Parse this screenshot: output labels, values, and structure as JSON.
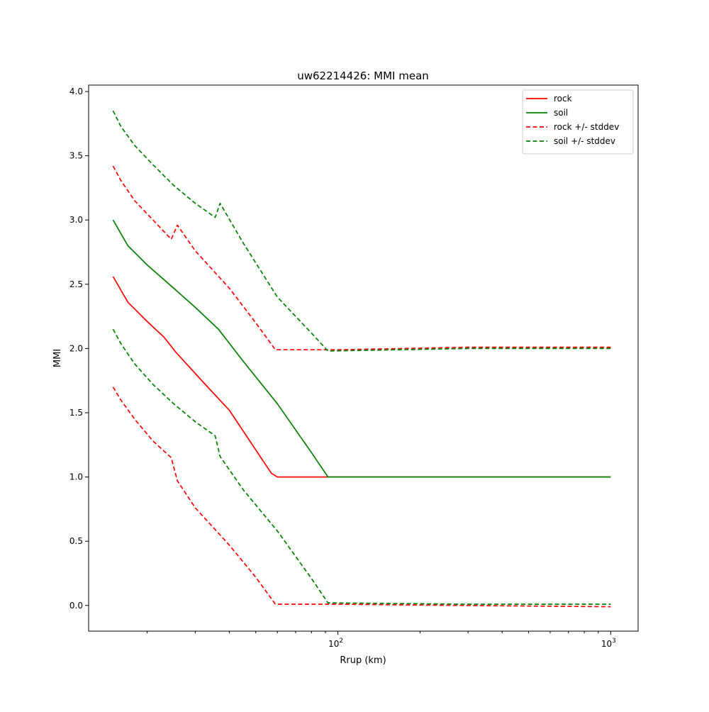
{
  "chart_data": {
    "type": "line",
    "title": "uw62214426: MMI mean",
    "xlabel": "Rrup (km)",
    "ylabel": "MMI",
    "xscale": "log",
    "xlim": [
      12.2,
      1260
    ],
    "ylim": [
      -0.2,
      4.05
    ],
    "y_ticks": [
      0.0,
      0.5,
      1.0,
      1.5,
      2.0,
      2.5,
      3.0,
      3.5,
      4.0
    ],
    "y_tick_labels": [
      "0.0",
      "0.5",
      "1.0",
      "1.5",
      "2.0",
      "2.5",
      "3.0",
      "3.5",
      "4.0"
    ],
    "x_major_ticks": [
      100,
      1000
    ],
    "x_tick_labels": [
      {
        "base": "10",
        "exp": "2"
      },
      {
        "base": "10",
        "exp": "3"
      }
    ],
    "x_minor_ticks": [
      20,
      30,
      40,
      50,
      60,
      70,
      80,
      90,
      200,
      300,
      400,
      500,
      600,
      700,
      800,
      900
    ],
    "grid": false,
    "legend_position": "top-right",
    "series": [
      {
        "name": "rock",
        "color": "#ff0000",
        "style": "solid",
        "x": [
          15,
          17,
          20,
          23,
          25.5,
          32,
          40,
          57,
          60,
          92,
          1000
        ],
        "y": [
          2.56,
          2.36,
          2.21,
          2.09,
          1.97,
          1.74,
          1.52,
          1.03,
          1.0,
          1.0,
          1.0
        ]
      },
      {
        "name": "soil",
        "color": "#008000",
        "style": "solid",
        "x": [
          15,
          17,
          20,
          25,
          30,
          36.5,
          45,
          60,
          80,
          92,
          1000
        ],
        "y": [
          3.0,
          2.8,
          2.65,
          2.47,
          2.32,
          2.15,
          1.9,
          1.57,
          1.19,
          1.0,
          1.0
        ]
      },
      {
        "name": "rock +/- stddev",
        "color": "#ff0000",
        "style": "dashed",
        "x": [
          15,
          16,
          18,
          21,
          24.5,
          25.8,
          30,
          40,
          50,
          59,
          100,
          300,
          1000
        ],
        "y": [
          3.42,
          3.31,
          3.15,
          3.0,
          2.85,
          2.96,
          2.76,
          2.47,
          2.2,
          1.99,
          1.99,
          2.01,
          2.01
        ]
      },
      {
        "name": "",
        "color": "#ff0000",
        "style": "dashed",
        "x": [
          15,
          16,
          18,
          21,
          24.5,
          25.8,
          30,
          40,
          50,
          59,
          100,
          300,
          1000
        ],
        "y": [
          1.7,
          1.6,
          1.45,
          1.28,
          1.15,
          0.97,
          0.76,
          0.47,
          0.22,
          0.01,
          0.01,
          0.0,
          -0.01
        ]
      },
      {
        "name": "soil +/- stddev",
        "color": "#008000",
        "style": "dashed",
        "x": [
          15,
          16,
          18,
          21,
          25,
          30,
          35.5,
          37,
          45,
          60,
          80,
          92,
          300,
          1000
        ],
        "y": [
          3.85,
          3.73,
          3.58,
          3.43,
          3.27,
          3.13,
          3.02,
          3.13,
          2.82,
          2.4,
          2.12,
          1.98,
          2.0,
          2.0
        ]
      },
      {
        "name": "",
        "color": "#008000",
        "style": "dashed",
        "x": [
          15,
          16,
          18,
          21,
          25,
          30,
          35.5,
          37,
          45,
          60,
          80,
          92,
          300,
          1000
        ],
        "y": [
          2.15,
          2.04,
          1.88,
          1.72,
          1.57,
          1.43,
          1.32,
          1.16,
          0.9,
          0.58,
          0.21,
          0.02,
          0.01,
          0.01
        ]
      }
    ]
  }
}
